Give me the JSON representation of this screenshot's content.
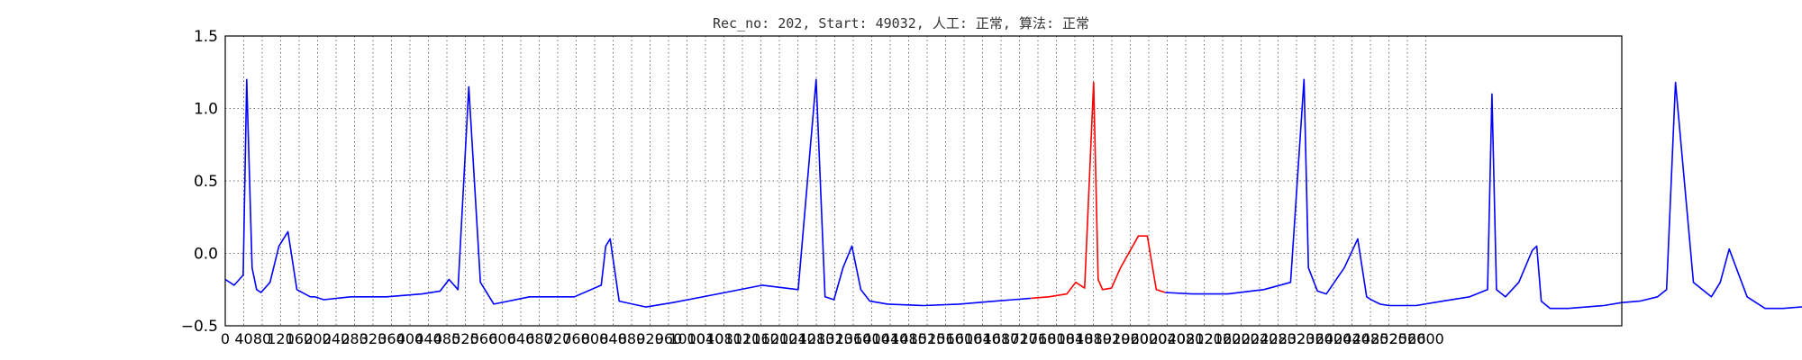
{
  "chart_data": {
    "type": "line",
    "title": "Rec_no: 202, Start: 49032, 人工: 正常, 算法: 正常",
    "xlabel": "",
    "ylabel": "",
    "xlim": [
      0,
      1560
    ],
    "ylim": [
      -0.5,
      1.5
    ],
    "grid": true,
    "y_ticks": [
      "−0.5",
      "0.0",
      "0.5",
      "1.0",
      "1.5"
    ],
    "x_ticks": [
      "0",
      "40",
      "80",
      "120",
      "160",
      "200",
      "240",
      "280",
      "320",
      "360",
      "400",
      "440",
      "480",
      "520",
      "560",
      "600",
      "640",
      "680",
      "720",
      "760",
      "800",
      "840",
      "880",
      "920",
      "960",
      "1000",
      "1040",
      "1080",
      "1120",
      "1160",
      "1200",
      "1240",
      "1280",
      "1320",
      "1360",
      "1400",
      "1440",
      "1480",
      "1520",
      "1560",
      "1600",
      "1640",
      "1680",
      "1720",
      "1760",
      "1800",
      "1840",
      "1880",
      "1920",
      "1960",
      "2000",
      "2040",
      "2080",
      "2120",
      "2160",
      "2200",
      "2240",
      "2280",
      "2320",
      "2360",
      "2400",
      "2440",
      "2480",
      "2520",
      "2560",
      "2600"
    ],
    "series": [
      {
        "color": "#0000ff",
        "x": [
          0,
          10,
          20,
          24,
          30,
          35,
          40,
          50,
          60,
          70,
          80,
          95,
          100,
          110,
          140,
          180,
          220,
          240,
          250,
          260,
          272,
          285,
          300,
          340,
          390,
          420,
          425,
          430,
          440,
          455,
          470,
          500,
          550,
          600,
          640,
          660,
          670,
          680,
          690,
          700,
          710,
          720,
          740,
          780,
          820,
          860,
          880,
          900
        ],
        "y": [
          -0.18,
          -0.22,
          -0.15,
          1.2,
          -0.1,
          -0.25,
          -0.27,
          -0.2,
          0.05,
          0.15,
          -0.25,
          -0.3,
          -0.3,
          -0.32,
          -0.3,
          -0.3,
          -0.28,
          -0.26,
          -0.18,
          -0.25,
          1.15,
          -0.2,
          -0.35,
          -0.3,
          -0.3,
          -0.22,
          0.05,
          0.1,
          -0.33,
          -0.35,
          -0.37,
          -0.34,
          -0.28,
          -0.22,
          -0.25,
          1.2,
          -0.3,
          -0.32,
          -0.1,
          0.05,
          -0.25,
          -0.33,
          -0.35,
          -0.36,
          -0.35,
          -0.33,
          -0.32,
          -0.31
        ]
      },
      {
        "color": "#ff0000",
        "x": [
          900,
          920,
          940,
          950,
          960,
          970,
          975,
          980,
          990,
          1000,
          1020,
          1030,
          1040,
          1050
        ],
        "y": [
          -0.31,
          -0.3,
          -0.28,
          -0.2,
          -0.24,
          1.18,
          -0.18,
          -0.25,
          -0.24,
          -0.1,
          0.12,
          0.12,
          -0.25,
          -0.27
        ]
      },
      {
        "color": "#0000ff",
        "x": [
          1050,
          1080,
          1120,
          1160,
          1190,
          1205,
          1210,
          1220,
          1230,
          1250,
          1265,
          1275,
          1280,
          1290,
          1300,
          1330,
          1360,
          1390,
          1410,
          1415,
          1420,
          1430,
          1445,
          1460,
          1465,
          1470,
          1480,
          1500,
          1540,
          1560
        ],
        "y": [
          -0.27,
          -0.28,
          -0.28,
          -0.25,
          -0.2,
          1.2,
          -0.1,
          -0.26,
          -0.28,
          -0.1,
          0.1,
          -0.3,
          -0.32,
          -0.35,
          -0.36,
          -0.36,
          -0.33,
          -0.3,
          -0.25,
          1.1,
          -0.25,
          -0.3,
          -0.2,
          0.02,
          0.05,
          -0.33,
          -0.38,
          -0.38,
          -0.36,
          -0.34
        ]
      },
      {
        "color": "#0000ff",
        "x": [
          1560,
          1580,
          1600,
          1610,
          1620,
          1640,
          1660,
          1670,
          1680,
          1700,
          1720,
          1740,
          1760,
          1780,
          1800,
          1810,
          1820,
          1830,
          1850,
          1860,
          1870,
          1880,
          1890
        ],
        "y": [
          -0.34,
          -0.33,
          -0.3,
          -0.25,
          1.18,
          -0.2,
          -0.3,
          -0.2,
          0.03,
          -0.3,
          -0.38,
          -0.38,
          -0.37,
          -0.35,
          -0.33,
          -0.3,
          -0.28,
          -0.25,
          -0.15,
          0.05,
          -0.1,
          -0.3,
          -0.36
        ]
      }
    ]
  }
}
